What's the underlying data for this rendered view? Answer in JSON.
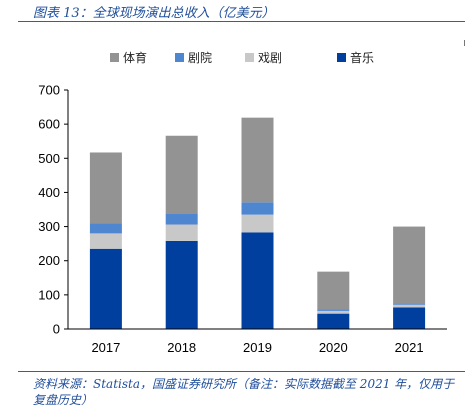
{
  "header": {
    "title": "图表 13：全球现场演出总收入（亿美元）"
  },
  "footer": {
    "source": "资料来源：Statista，国盛证券研究所（备注：实际数据截至 2021 年，仅用于复盘历史）"
  },
  "chart_data": {
    "type": "bar",
    "stacked": true,
    "categories": [
      "2017",
      "2018",
      "2019",
      "2020",
      "2021"
    ],
    "series": [
      {
        "name": "音乐",
        "color": "#003f9e",
        "values": [
          235,
          258,
          283,
          45,
          63
        ]
      },
      {
        "name": "戏剧",
        "color": "#c8c8c8",
        "values": [
          45,
          48,
          52,
          8,
          8
        ]
      },
      {
        "name": "剧院",
        "color": "#4f86d0",
        "values": [
          30,
          32,
          36,
          4,
          4
        ]
      },
      {
        "name": "体育",
        "color": "#939393",
        "values": [
          207,
          228,
          248,
          111,
          225
        ]
      }
    ],
    "legend_order": [
      3,
      2,
      1,
      0
    ],
    "legend_position": "top",
    "ylim": [
      0,
      700
    ],
    "yticks": [
      "0",
      "100",
      "200",
      "300",
      "400",
      "500",
      "600",
      "700"
    ],
    "grid": false,
    "title": "",
    "xlabel": "",
    "ylabel": ""
  }
}
